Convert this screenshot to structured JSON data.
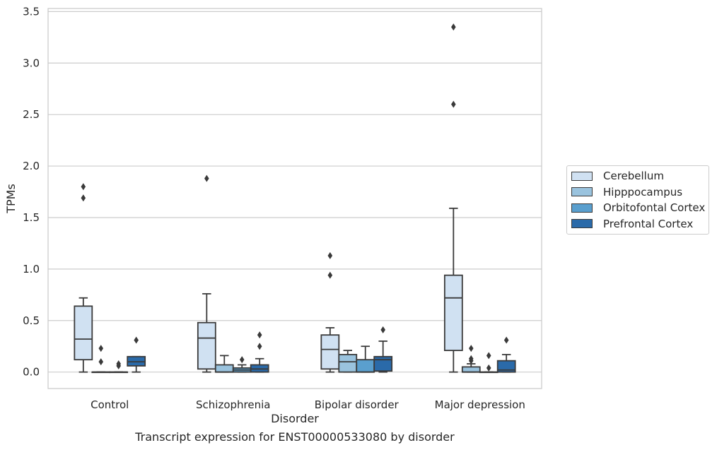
{
  "caption": "Transcript expression for ENST00000533080 by disorder",
  "chart_data": {
    "type": "box",
    "xlabel": "Disorder",
    "ylabel": "TPMs",
    "ylim": [
      -0.16,
      3.53
    ],
    "yticks": [
      "0.0",
      "0.5",
      "1.0",
      "1.5",
      "2.0",
      "2.5",
      "3.0",
      "3.5"
    ],
    "ytick_values": [
      0,
      0.5,
      1.0,
      1.5,
      2.0,
      2.5,
      3.0,
      3.5
    ],
    "grid": "horizontal",
    "legend_position": "right",
    "categories": [
      "Control",
      "Schizophrenia",
      "Bipolar disorder",
      "Major depression"
    ],
    "series": [
      {
        "name": "Cerebellum",
        "color": "#d0e1f2",
        "boxes": [
          {
            "whislo": 0.0,
            "q1": 0.12,
            "med": 0.32,
            "q3": 0.64,
            "whishi": 0.72,
            "fliers": [
              1.69,
              1.8
            ]
          },
          {
            "whislo": 0.0,
            "q1": 0.03,
            "med": 0.33,
            "q3": 0.48,
            "whishi": 0.76,
            "fliers": [
              1.88
            ]
          },
          {
            "whislo": 0.0,
            "q1": 0.03,
            "med": 0.22,
            "q3": 0.36,
            "whishi": 0.43,
            "fliers": [
              0.94,
              1.13
            ]
          },
          {
            "whislo": 0.0,
            "q1": 0.21,
            "med": 0.72,
            "q3": 0.94,
            "whishi": 1.59,
            "fliers": [
              2.6,
              3.35
            ]
          }
        ]
      },
      {
        "name": "Hipppocampus",
        "color": "#9ac3de",
        "boxes": [
          {
            "whislo": 0.0,
            "q1": 0.0,
            "med": 0.0,
            "q3": 0.0,
            "whishi": 0.0,
            "fliers": [
              0.1,
              0.23
            ]
          },
          {
            "whislo": 0.0,
            "q1": 0.0,
            "med": 0.0,
            "q3": 0.07,
            "whishi": 0.16,
            "fliers": []
          },
          {
            "whislo": 0.0,
            "q1": 0.0,
            "med": 0.1,
            "q3": 0.17,
            "whishi": 0.21,
            "fliers": []
          },
          {
            "whislo": 0.0,
            "q1": 0.0,
            "med": 0.0,
            "q3": 0.05,
            "whishi": 0.08,
            "fliers": [
              0.11,
              0.13,
              0.23
            ]
          }
        ]
      },
      {
        "name": "Orbitofontal Cortex",
        "color": "#5a9fce",
        "boxes": [
          {
            "whislo": 0.0,
            "q1": 0.0,
            "med": 0.0,
            "q3": 0.0,
            "whishi": 0.0,
            "fliers": [
              0.06,
              0.08
            ]
          },
          {
            "whislo": 0.0,
            "q1": 0.0,
            "med": 0.02,
            "q3": 0.04,
            "whishi": 0.07,
            "fliers": [
              0.12
            ]
          },
          {
            "whislo": 0.0,
            "q1": 0.0,
            "med": 0.0,
            "q3": 0.12,
            "whishi": 0.25,
            "fliers": []
          },
          {
            "whislo": 0.0,
            "q1": 0.0,
            "med": 0.0,
            "q3": 0.0,
            "whishi": 0.0,
            "fliers": [
              0.04,
              0.16
            ]
          }
        ]
      },
      {
        "name": "Prefrontal Cortex",
        "color": "#2a6aa9",
        "boxes": [
          {
            "whislo": 0.0,
            "q1": 0.06,
            "med": 0.1,
            "q3": 0.15,
            "whishi": 0.15,
            "fliers": [
              0.31
            ]
          },
          {
            "whislo": 0.0,
            "q1": 0.0,
            "med": 0.03,
            "q3": 0.07,
            "whishi": 0.13,
            "fliers": [
              0.25,
              0.36
            ]
          },
          {
            "whislo": 0.0,
            "q1": 0.01,
            "med": 0.12,
            "q3": 0.15,
            "whishi": 0.3,
            "fliers": [
              0.41
            ]
          },
          {
            "whislo": 0.0,
            "q1": 0.0,
            "med": 0.02,
            "q3": 0.11,
            "whishi": 0.17,
            "fliers": [
              0.31
            ]
          }
        ]
      }
    ]
  }
}
